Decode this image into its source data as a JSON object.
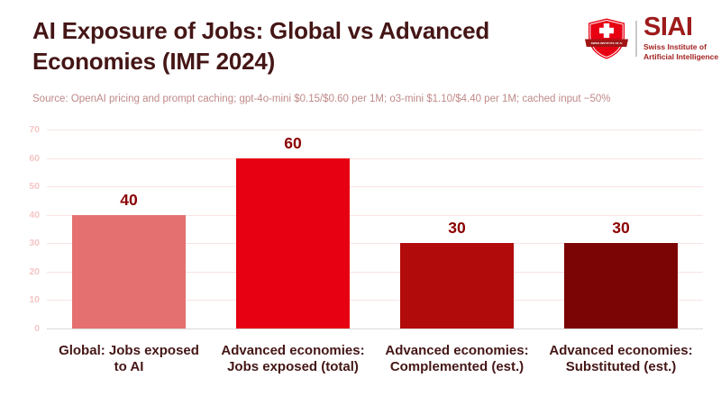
{
  "header": {
    "title": "AI Exposure of Jobs: Global vs Advanced Economies (IMF 2024)",
    "logo": {
      "wordmark": "SIAI",
      "org_line1": "Swiss Institute of",
      "org_line2": "Artificial Intelligence",
      "banner_text": "SWISS INSTITUTE OF AI"
    }
  },
  "source_note": "Source: OpenAI pricing and prompt caching; gpt-4o-mini $0.15/$0.60 per 1M; o3-mini $1.10/$4.40 per 1M; cached input −50%",
  "chart_data": {
    "type": "bar",
    "title": "AI Exposure of Jobs: Global vs Advanced Economies (IMF 2024)",
    "categories": [
      "Global: Jobs exposed to AI",
      "Advanced economies: Jobs exposed (total)",
      "Advanced economies: Complemented (est.)",
      "Advanced economies: Substituted (est.)"
    ],
    "category_lines": [
      [
        "Global: Jobs exposed",
        "to AI"
      ],
      [
        "Advanced economies:",
        "Jobs exposed (total)"
      ],
      [
        "Advanced economies:",
        "Complemented (est.)"
      ],
      [
        "Advanced economies:",
        "Substituted (est.)"
      ]
    ],
    "values": [
      40,
      60,
      30,
      30
    ],
    "value_labels": [
      "40",
      "60",
      "30",
      "30"
    ],
    "bar_colors": [
      "#e57070",
      "#e60012",
      "#b20b0b",
      "#7b0404"
    ],
    "xlabel": "",
    "ylabel": "",
    "ylim": [
      0,
      70
    ],
    "yticks": [
      0,
      10,
      20,
      30,
      40,
      50,
      60,
      70
    ],
    "grid": true,
    "legend_position": "none"
  },
  "colors": {
    "title": "#451616",
    "source_note": "#c08989",
    "value_label": "#8b0000",
    "ytick_label": "#f5c6c6",
    "gridline": "#fae3e3",
    "baseline": "#d9d9d9",
    "logo_red": "#9e1b1b",
    "shield_red": "#e60012",
    "banner_red": "#a01515",
    "x_label": "#451616"
  }
}
